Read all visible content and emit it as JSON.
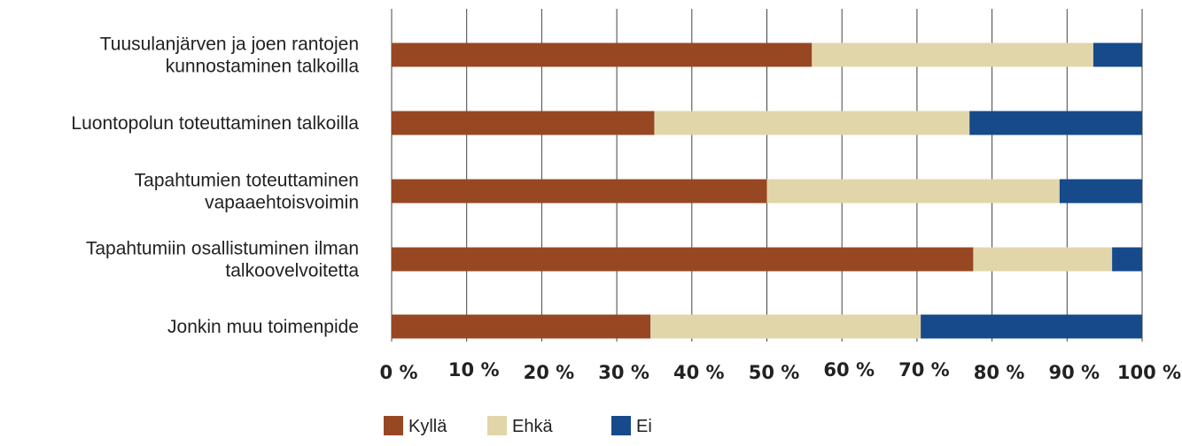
{
  "chart_data": {
    "type": "bar",
    "orientation": "horizontal",
    "stacked": true,
    "categories": [
      [
        "Tuusulanjärven ja joen rantojen",
        "kunnostaminen talkoilla"
      ],
      [
        "Luontopolun toteuttaminen talkoilla"
      ],
      [
        "Tapahtumien toteuttaminen",
        "vapaaehtoisvoimin"
      ],
      [
        "Tapahtumiin osallistuminen ilman",
        "talkoovelvoitetta"
      ],
      [
        "Jonkin muu toimenpide"
      ]
    ],
    "series": [
      {
        "name": "Kyllä",
        "color": "#974823",
        "values": [
          56,
          35,
          50,
          77.5,
          34.5
        ]
      },
      {
        "name": "Ehkä",
        "color": "#e1d6aa",
        "values": [
          37.5,
          42,
          39,
          18.5,
          36
        ]
      },
      {
        "name": "Ei",
        "color": "#164a8a",
        "values": [
          6.5,
          23,
          11,
          4,
          29.5
        ]
      }
    ],
    "x_ticks": [
      "0 %",
      "10 %",
      "20 %",
      "30 %",
      "40 %",
      "50 %",
      "60 %",
      "70 %",
      "80 %",
      "90 %",
      "100 %"
    ],
    "xlim": [
      0,
      100
    ],
    "grid": "vertical",
    "legend_position": "bottom"
  }
}
